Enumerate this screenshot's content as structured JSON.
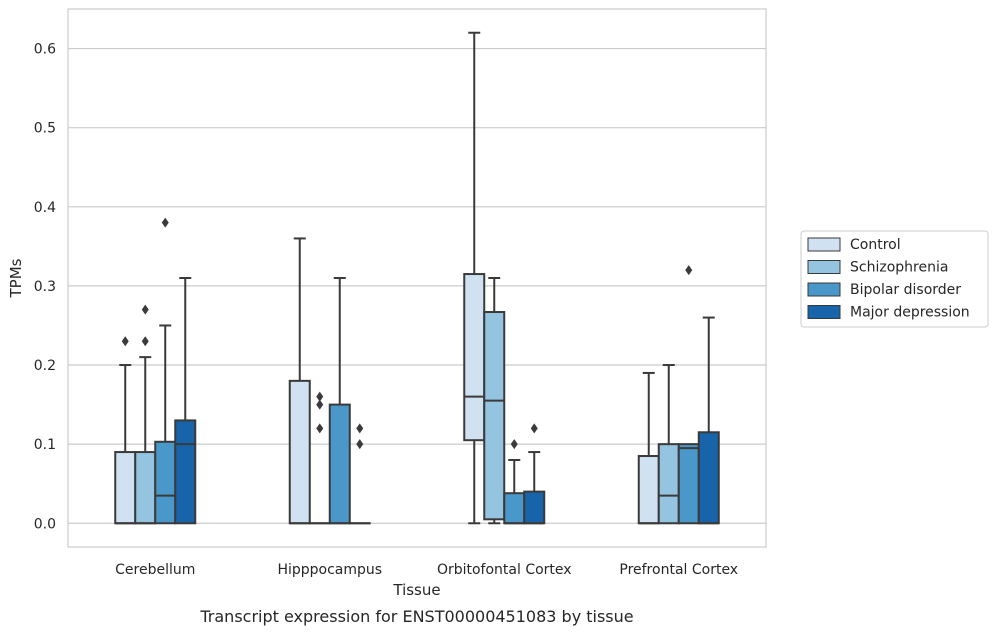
{
  "caption": "Transcript expression for ENST00000451083 by tissue",
  "chart_data": {
    "type": "box",
    "title": "",
    "xlabel": "Tissue",
    "ylabel": "TPMs",
    "ylim": [
      -0.03,
      0.65
    ],
    "yticks": [
      0.0,
      0.1,
      0.2,
      0.3,
      0.4,
      0.5,
      0.6
    ],
    "ytick_labels": [
      "0.0",
      "0.1",
      "0.2",
      "0.3",
      "0.4",
      "0.5",
      "0.6"
    ],
    "grid": "horizontal",
    "legend_position": "right",
    "categories": [
      "Cerebellum",
      "Hipppocampus",
      "Orbitofontal Cortex",
      "Prefrontal Cortex"
    ],
    "series": [
      {
        "name": "Control",
        "color": "#d0e1f2",
        "boxes": [
          {
            "category": "Cerebellum",
            "whisker_low": 0.0,
            "q1": 0.0,
            "median": 0.0,
            "q3": 0.09,
            "whisker_high": 0.2,
            "outliers": [
              0.23
            ]
          },
          {
            "category": "Hipppocampus",
            "whisker_low": 0.0,
            "q1": 0.0,
            "median": 0.0,
            "q3": 0.18,
            "whisker_high": 0.36,
            "outliers": []
          },
          {
            "category": "Orbitofontal Cortex",
            "whisker_low": 0.0,
            "q1": 0.105,
            "median": 0.16,
            "q3": 0.315,
            "whisker_high": 0.62,
            "outliers": []
          },
          {
            "category": "Prefrontal Cortex",
            "whisker_low": 0.0,
            "q1": 0.0,
            "median": 0.0,
            "q3": 0.085,
            "whisker_high": 0.19,
            "outliers": []
          }
        ]
      },
      {
        "name": "Schizophrenia",
        "color": "#94c4df",
        "boxes": [
          {
            "category": "Cerebellum",
            "whisker_low": 0.0,
            "q1": 0.0,
            "median": 0.0,
            "q3": 0.09,
            "whisker_high": 0.21,
            "outliers": [
              0.23,
              0.27
            ]
          },
          {
            "category": "Hipppocampus",
            "whisker_low": 0.0,
            "q1": 0.0,
            "median": 0.0,
            "q3": 0.0,
            "whisker_high": 0.0,
            "outliers": [
              0.12,
              0.15,
              0.16
            ]
          },
          {
            "category": "Orbitofontal Cortex",
            "whisker_low": 0.0,
            "q1": 0.005,
            "median": 0.155,
            "q3": 0.267,
            "whisker_high": 0.31,
            "outliers": []
          },
          {
            "category": "Prefrontal Cortex",
            "whisker_low": 0.0,
            "q1": 0.0,
            "median": 0.035,
            "q3": 0.1,
            "whisker_high": 0.2,
            "outliers": []
          }
        ]
      },
      {
        "name": "Bipolar disorder",
        "color": "#4a98c9",
        "boxes": [
          {
            "category": "Cerebellum",
            "whisker_low": 0.0,
            "q1": 0.0,
            "median": 0.035,
            "q3": 0.103,
            "whisker_high": 0.25,
            "outliers": [
              0.38
            ]
          },
          {
            "category": "Hipppocampus",
            "whisker_low": 0.0,
            "q1": 0.0,
            "median": 0.0,
            "q3": 0.15,
            "whisker_high": 0.31,
            "outliers": []
          },
          {
            "category": "Orbitofontal Cortex",
            "whisker_low": 0.0,
            "q1": 0.0,
            "median": 0.0,
            "q3": 0.038,
            "whisker_high": 0.08,
            "outliers": [
              0.1
            ]
          },
          {
            "category": "Prefrontal Cortex",
            "whisker_low": 0.0,
            "q1": 0.0,
            "median": 0.095,
            "q3": 0.1,
            "whisker_high": 0.1,
            "outliers": [
              0.32
            ]
          }
        ]
      },
      {
        "name": "Major depression",
        "color": "#1764ab",
        "boxes": [
          {
            "category": "Cerebellum",
            "whisker_low": 0.0,
            "q1": 0.0,
            "median": 0.1,
            "q3": 0.13,
            "whisker_high": 0.31,
            "outliers": []
          },
          {
            "category": "Hipppocampus",
            "whisker_low": 0.0,
            "q1": 0.0,
            "median": 0.0,
            "q3": 0.0,
            "whisker_high": 0.0,
            "outliers": [
              0.1,
              0.12
            ]
          },
          {
            "category": "Orbitofontal Cortex",
            "whisker_low": 0.0,
            "q1": 0.0,
            "median": 0.0,
            "q3": 0.04,
            "whisker_high": 0.09,
            "outliers": [
              0.12
            ]
          },
          {
            "category": "Prefrontal Cortex",
            "whisker_low": 0.0,
            "q1": 0.0,
            "median": 0.0,
            "q3": 0.115,
            "whisker_high": 0.26,
            "outliers": []
          }
        ]
      }
    ]
  }
}
